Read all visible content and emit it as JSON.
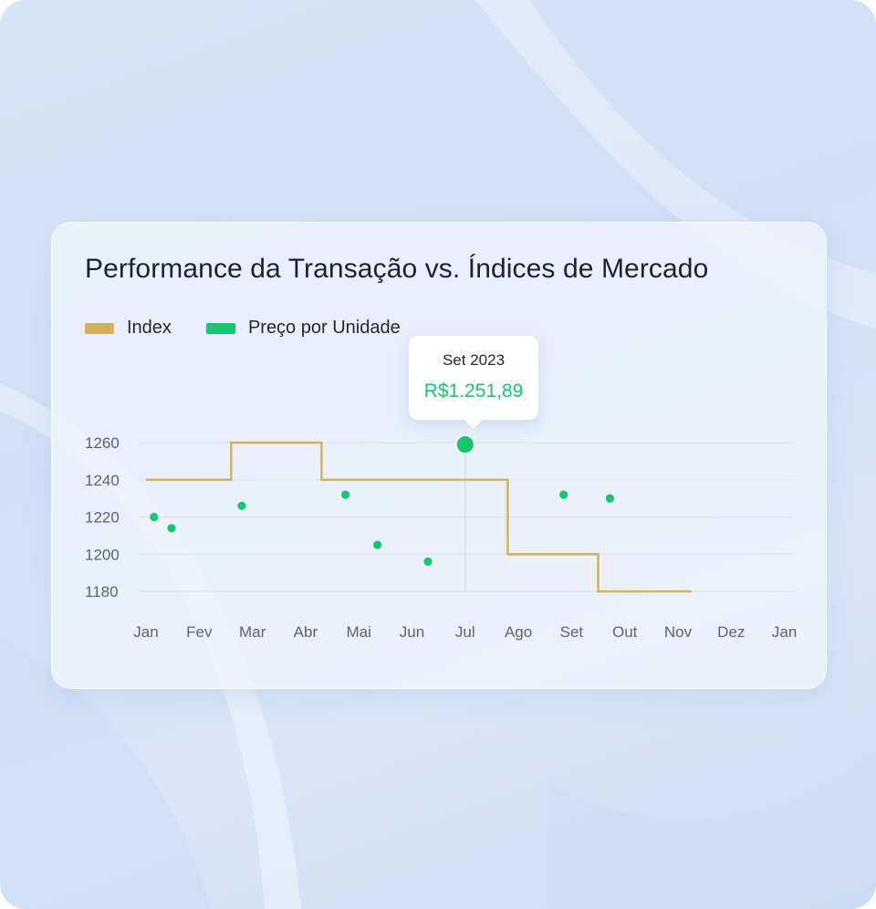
{
  "chart_data": {
    "type": "line",
    "title": "Performance da Transação vs. Índices de Mercado",
    "x_categories": [
      "Jan",
      "Fev",
      "Mar",
      "Abr",
      "Mai",
      "Jun",
      "Jul",
      "Ago",
      "Set",
      "Out",
      "Nov",
      "Dez",
      "Jan"
    ],
    "y_ticks": [
      1260,
      1240,
      1220,
      1200,
      1180
    ],
    "ylim": [
      1180,
      1260
    ],
    "grid": true,
    "legend_position": "top-left",
    "series": [
      {
        "name": "Index",
        "kind": "step",
        "color": "#d4b25a",
        "points": [
          [
            0,
            1240
          ],
          [
            1.6,
            1240
          ],
          [
            1.6,
            1260
          ],
          [
            3.3,
            1260
          ],
          [
            3.3,
            1240
          ],
          [
            6.8,
            1240
          ],
          [
            6.8,
            1200
          ],
          [
            8.5,
            1200
          ],
          [
            8.5,
            1180
          ],
          [
            10.25,
            1180
          ]
        ]
      },
      {
        "name": "Preço por Unidade",
        "kind": "scatter",
        "color": "#17c56c",
        "points": [
          [
            0.15,
            1220
          ],
          [
            0.48,
            1214
          ],
          [
            1.8,
            1226
          ],
          [
            3.75,
            1232
          ],
          [
            4.35,
            1205
          ],
          [
            5.3,
            1196
          ],
          [
            6.0,
            1259
          ],
          [
            7.85,
            1232
          ],
          [
            8.72,
            1230
          ]
        ]
      }
    ],
    "tooltip": {
      "date": "Set 2023",
      "value": "R$1.251,89"
    }
  },
  "colors": {
    "accent_green": "#17c56c",
    "index_gold": "#d4b25a"
  }
}
